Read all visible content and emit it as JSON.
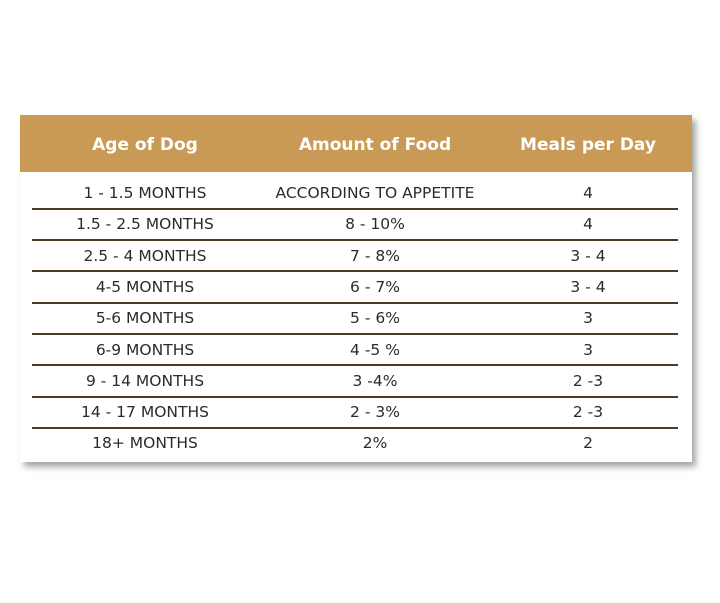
{
  "table": {
    "headers": [
      "Age of Dog",
      "Amount of Food",
      "Meals per Day"
    ],
    "rows": [
      [
        "1 - 1.5 MONTHS",
        "ACCORDING TO APPETITE",
        "4"
      ],
      [
        "1.5 - 2.5 MONTHS",
        "8 - 10%",
        "4"
      ],
      [
        "2.5 - 4 MONTHS",
        "7 - 8%",
        "3 - 4"
      ],
      [
        "4-5 MONTHS",
        "6 - 7%",
        "3 - 4"
      ],
      [
        "5-6 MONTHS",
        "5 - 6%",
        "3"
      ],
      [
        "6-9 MONTHS",
        "4 -5 %",
        "3"
      ],
      [
        "9 - 14 MONTHS",
        "3 -4%",
        "2 -3"
      ],
      [
        "14 - 17 MONTHS",
        "2 - 3%",
        "2 -3"
      ],
      [
        "18+ MONTHS",
        "2%",
        "2"
      ]
    ]
  }
}
